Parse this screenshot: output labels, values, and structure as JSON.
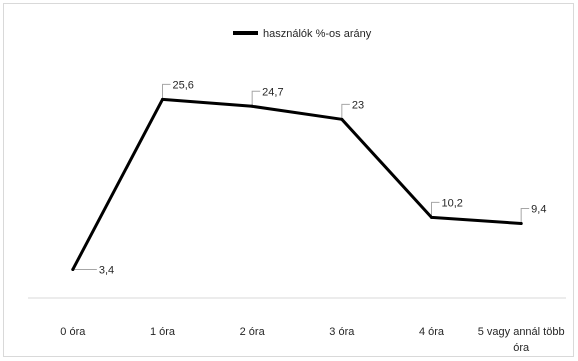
{
  "chart_data": {
    "type": "line",
    "categories": [
      "0 óra",
      "1 óra",
      "2 óra",
      "3 óra",
      "4 óra",
      "5 vagy annál több óra"
    ],
    "category_lines": [
      [
        "0 óra"
      ],
      [
        "1 óra"
      ],
      [
        "2 óra"
      ],
      [
        "3 óra"
      ],
      [
        "4 óra"
      ],
      [
        "5 vagy annál több",
        "óra"
      ]
    ],
    "series": [
      {
        "name": "használók %-os arány",
        "values": [
          3.4,
          25.6,
          24.7,
          23,
          10.2,
          9.4
        ],
        "data_labels": [
          "3,4",
          "25,6",
          "24,7",
          "23",
          "10,2",
          "9,4"
        ],
        "color": "#000000"
      }
    ],
    "title": "",
    "xlabel": "",
    "ylabel": "",
    "ylim": [
      0,
      30
    ],
    "grid": false,
    "legend": "top-center",
    "callout_color": "#a6a6a6"
  }
}
